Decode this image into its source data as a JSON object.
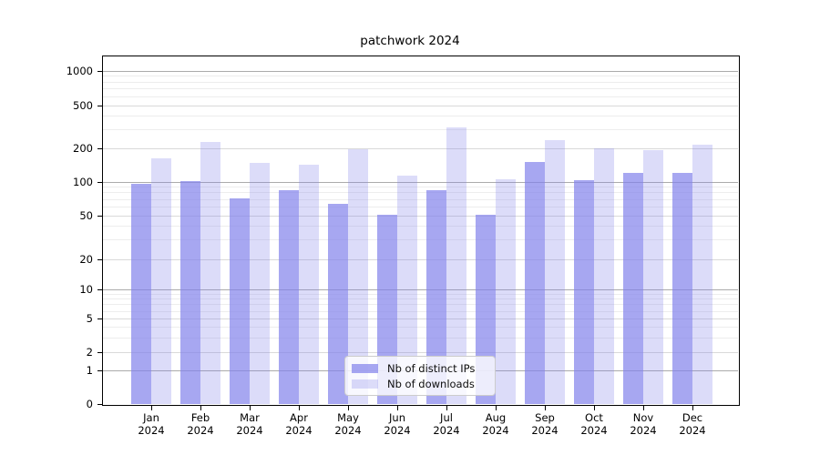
{
  "chart_data": {
    "type": "bar",
    "title": "patchwork 2024",
    "yscale": "symlog",
    "ylim": [
      0,
      1400
    ],
    "grid": true,
    "legend_position": "lower center",
    "categories": [
      "Jan 2024",
      "Feb 2024",
      "Mar 2024",
      "Apr 2024",
      "May 2024",
      "Jun 2024",
      "Jul 2024",
      "Aug 2024",
      "Sep 2024",
      "Oct 2024",
      "Nov 2024",
      "Dec 2024"
    ],
    "months": [
      {
        "month": "Jan",
        "year": "2024"
      },
      {
        "month": "Feb",
        "year": "2024"
      },
      {
        "month": "Mar",
        "year": "2024"
      },
      {
        "month": "Apr",
        "year": "2024"
      },
      {
        "month": "May",
        "year": "2024"
      },
      {
        "month": "Jun",
        "year": "2024"
      },
      {
        "month": "Jul",
        "year": "2024"
      },
      {
        "month": "Aug",
        "year": "2024"
      },
      {
        "month": "Sep",
        "year": "2024"
      },
      {
        "month": "Oct",
        "year": "2024"
      },
      {
        "month": "Nov",
        "year": "2024"
      },
      {
        "month": "Dec",
        "year": "2024"
      }
    ],
    "series": [
      {
        "name": "Nb of distinct IPs",
        "color": "rgba(130,130,235,0.70)",
        "values": [
          96,
          101,
          71,
          84,
          64,
          51,
          84,
          51,
          152,
          103,
          121,
          120
        ]
      },
      {
        "name": "Nb of downloads",
        "color": "rgba(130,130,235,0.28)",
        "values": [
          164,
          232,
          150,
          144,
          197,
          114,
          312,
          106,
          242,
          203,
          195,
          218
        ]
      }
    ],
    "y_ticks": [
      {
        "value": 0,
        "label": "0",
        "level": "major"
      },
      {
        "value": 1,
        "label": "1",
        "level": "major"
      },
      {
        "value": 2,
        "label": "2",
        "level": "minor"
      },
      {
        "value": 5,
        "label": "5",
        "level": "minor"
      },
      {
        "value": 10,
        "label": "10",
        "level": "major"
      },
      {
        "value": 20,
        "label": "20",
        "level": "minor"
      },
      {
        "value": 50,
        "label": "50",
        "level": "minor"
      },
      {
        "value": 100,
        "label": "100",
        "level": "major"
      },
      {
        "value": 200,
        "label": "200",
        "level": "minor"
      },
      {
        "value": 500,
        "label": "500",
        "level": "minor"
      },
      {
        "value": 1000,
        "label": "1000",
        "level": "major"
      }
    ],
    "minor_gridlines": [
      3,
      4,
      6,
      7,
      8,
      9,
      30,
      40,
      60,
      70,
      80,
      90,
      300,
      400,
      600,
      700,
      800,
      900
    ]
  },
  "colors": {
    "background": "#ffffff",
    "grid_major": "#ababab",
    "grid_minor_labeled": "#d9d9d9",
    "grid_minor": "#ededed",
    "spine": "#000000",
    "legend_border": "#cccccc",
    "legend_background": "rgba(255,255,255,0.8)",
    "text": "#000000"
  }
}
